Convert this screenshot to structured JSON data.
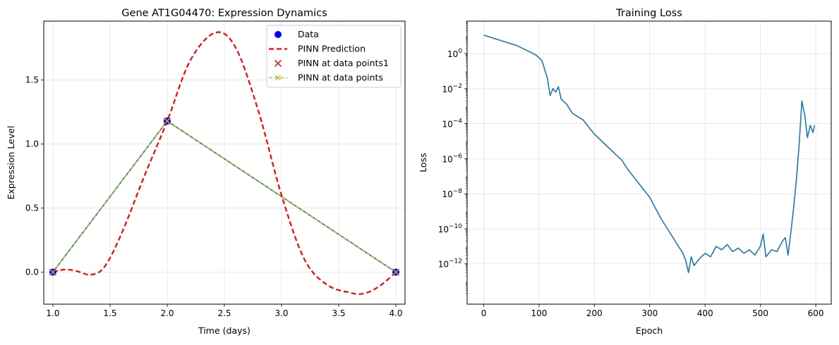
{
  "chart_data": [
    {
      "type": "line",
      "title": "Gene AT1G04470: Expression Dynamics",
      "xlabel": "Time (days)",
      "ylabel": "Expression Level",
      "xlim": [
        0.92,
        4.08
      ],
      "ylim": [
        -0.25,
        1.96
      ],
      "xticks": [
        1.0,
        1.5,
        2.0,
        2.5,
        3.0,
        3.5,
        4.0
      ],
      "xtick_labels": [
        "1.0",
        "1.5",
        "2.0",
        "2.5",
        "3.0",
        "3.5",
        "4.0"
      ],
      "yticks": [
        0.0,
        0.5,
        1.0,
        1.5
      ],
      "ytick_labels": [
        "0.0",
        "0.5",
        "1.0",
        "1.5"
      ],
      "grid": true,
      "legend_position": "top-right",
      "series": [
        {
          "name": "Data",
          "kind": "scatter",
          "marker": "circle",
          "color": "#0000ff",
          "x": [
            1,
            2,
            4
          ],
          "y": [
            0.0,
            1.18,
            0.0
          ]
        },
        {
          "name": "PINN Prediction",
          "kind": "line",
          "style": "dashed",
          "color": "#ff0000",
          "x": [
            1.0,
            1.1,
            1.2,
            1.33,
            1.45,
            1.6,
            1.8,
            2.0,
            2.2,
            2.42,
            2.6,
            2.8,
            3.0,
            3.2,
            3.4,
            3.6,
            3.7,
            3.8,
            3.9,
            4.0
          ],
          "y": [
            0.0,
            0.02,
            0.01,
            -0.02,
            0.04,
            0.3,
            0.75,
            1.18,
            1.65,
            1.87,
            1.75,
            1.25,
            0.6,
            0.1,
            -0.1,
            -0.16,
            -0.17,
            -0.14,
            -0.08,
            0.0
          ]
        },
        {
          "name": "PINN at data points1",
          "kind": "scatter",
          "marker": "x",
          "color": "#d62728",
          "x": [
            1,
            2,
            4
          ],
          "y": [
            0.0,
            1.18,
            0.0
          ]
        },
        {
          "name": "PINN at data points",
          "kind": "line",
          "style": "dashed",
          "marker": "x",
          "color": "#bcbd22",
          "x": [
            1,
            2,
            4
          ],
          "y": [
            0.0,
            1.18,
            0.0
          ]
        }
      ]
    },
    {
      "type": "line",
      "title": "Training Loss",
      "xlabel": "Epoch",
      "ylabel": "Loss",
      "yscale": "log",
      "xlim": [
        -30,
        628
      ],
      "ylim_log10": [
        -14.3,
        1.85
      ],
      "xticks": [
        0,
        100,
        200,
        300,
        400,
        500,
        600
      ],
      "xtick_labels": [
        "0",
        "100",
        "200",
        "300",
        "400",
        "500",
        "600"
      ],
      "ytick_exponents": [
        0,
        -2,
        -4,
        -6,
        -8,
        -10,
        -12
      ],
      "ytick_base": "10",
      "grid": true,
      "series": [
        {
          "name": "",
          "color": "#1f77b4",
          "x": [
            0,
            20,
            40,
            60,
            80,
            95,
            105,
            110,
            115,
            120,
            125,
            130,
            135,
            140,
            150,
            160,
            170,
            180,
            190,
            200,
            210,
            220,
            230,
            240,
            250,
            260,
            270,
            280,
            290,
            300,
            310,
            320,
            330,
            340,
            350,
            360,
            365,
            370,
            375,
            380,
            390,
            400,
            410,
            420,
            430,
            440,
            450,
            460,
            470,
            480,
            490,
            500,
            505,
            510,
            520,
            530,
            540,
            545,
            550,
            555,
            560,
            565,
            570,
            575,
            580,
            585,
            590,
            595,
            598
          ],
          "y_log10": [
            1.05,
            0.85,
            0.65,
            0.45,
            0.15,
            -0.1,
            -0.4,
            -0.9,
            -1.4,
            -2.4,
            -2.0,
            -2.2,
            -1.9,
            -2.6,
            -2.9,
            -3.4,
            -3.6,
            -3.8,
            -4.2,
            -4.6,
            -4.9,
            -5.2,
            -5.5,
            -5.8,
            -6.1,
            -6.6,
            -7.0,
            -7.4,
            -7.8,
            -8.2,
            -8.8,
            -9.4,
            -9.9,
            -10.4,
            -10.9,
            -11.4,
            -11.8,
            -12.5,
            -11.6,
            -12.1,
            -11.7,
            -11.4,
            -11.6,
            -11.0,
            -11.2,
            -10.9,
            -11.3,
            -11.1,
            -11.4,
            -11.2,
            -11.5,
            -11.0,
            -10.3,
            -11.6,
            -11.2,
            -11.3,
            -10.7,
            -10.5,
            -11.5,
            -10.2,
            -8.8,
            -7.2,
            -5.2,
            -2.7,
            -3.5,
            -4.8,
            -4.1,
            -4.5,
            -4.1
          ]
        }
      ]
    }
  ]
}
